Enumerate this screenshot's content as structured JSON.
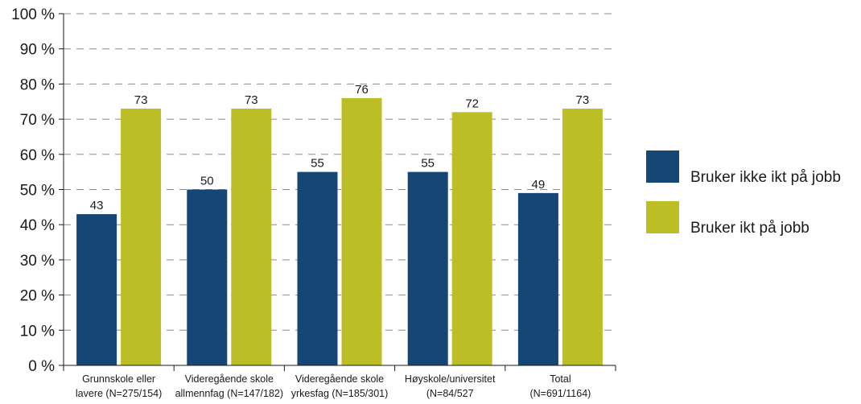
{
  "chart_data": {
    "type": "bar",
    "title": "",
    "xlabel": "",
    "ylabel": "",
    "ylim": [
      0,
      100
    ],
    "yticks": [
      "0 %",
      "10 %",
      "20 %",
      "30 %",
      "40 %",
      "50 %",
      "60 %",
      "70 %",
      "80 %",
      "90 %",
      "100 %"
    ],
    "grid": true,
    "legend_position": "right",
    "categories": [
      [
        "Grunnskole eller",
        "lavere (N=275/154)"
      ],
      [
        "Videregående skole",
        "allmennfag (N=147/182)"
      ],
      [
        "Videregående skole",
        "yrkesfag (N=185/301)"
      ],
      [
        "Høyskole/universitet",
        "(N=84/527"
      ],
      [
        "Total",
        "(N=691/1164)"
      ]
    ],
    "series": [
      {
        "name": "Bruker ikke ikt på jobb",
        "color": "#154676",
        "values": [
          43,
          50,
          55,
          55,
          49
        ]
      },
      {
        "name": "Bruker ikt på jobb",
        "color": "#bcbe25",
        "values": [
          73,
          73,
          76,
          72,
          73
        ]
      }
    ]
  }
}
